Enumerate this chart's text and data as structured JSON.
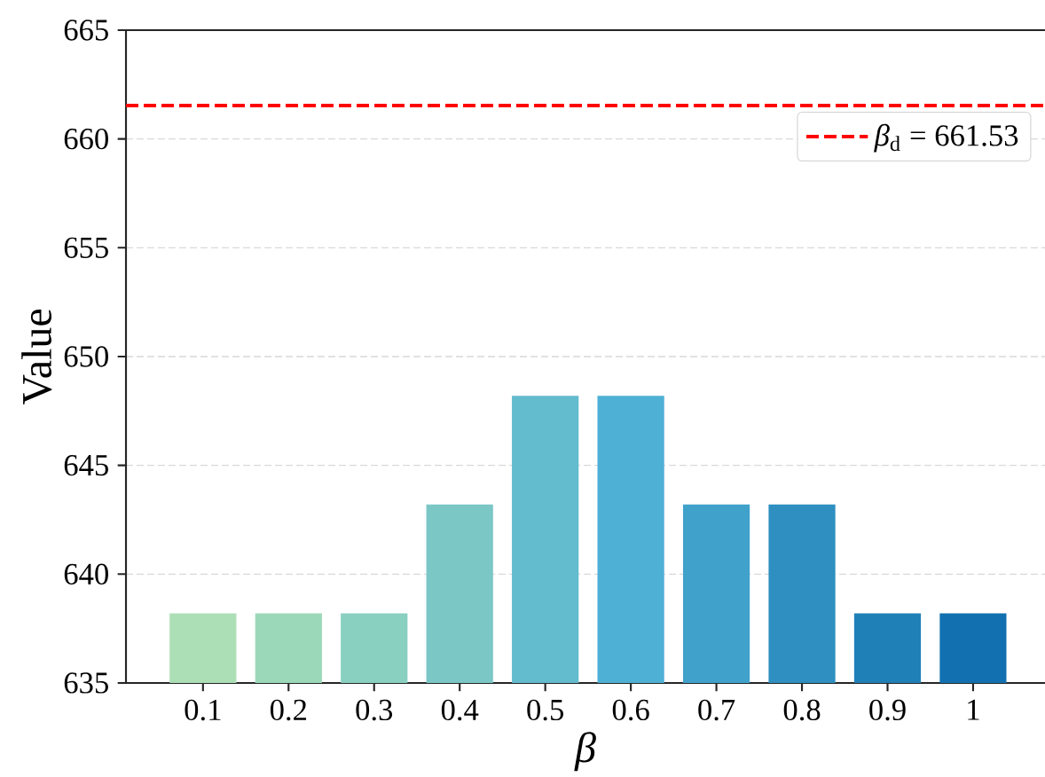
{
  "chart_data": {
    "type": "bar",
    "xlabel": "β",
    "ylabel": "Value",
    "categories": [
      "0.1",
      "0.2",
      "0.3",
      "0.4",
      "0.5",
      "0.6",
      "0.7",
      "0.8",
      "0.9",
      "1"
    ],
    "values": [
      638.2,
      638.2,
      638.2,
      643.2,
      648.2,
      648.2,
      643.2,
      643.2,
      638.2,
      638.2
    ],
    "colors": [
      "#addfb7",
      "#9bd8b9",
      "#89d0c0",
      "#7bc7c6",
      "#63bbce",
      "#4fb0d5",
      "#40a2cb",
      "#2e8fc0",
      "#1f80b8",
      "#1270b0"
    ],
    "ylim": [
      635,
      665
    ],
    "yticks": [
      635,
      640,
      645,
      650,
      655,
      660,
      665
    ],
    "grid": "y",
    "legend": "top right",
    "ref_lines": [
      {
        "axis": "y",
        "value": 661.53,
        "label": "*β*$_{d}$ = 661.53",
        "color": "#ff0000",
        "line_style": "dashed"
      }
    ]
  }
}
